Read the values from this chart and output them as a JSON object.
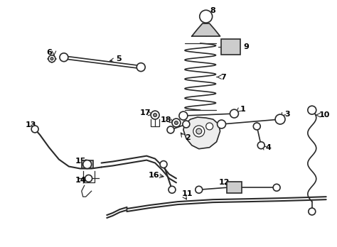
{
  "bg_color": "#ffffff",
  "line_color": "#2a2a2a",
  "label_color": "#000000",
  "figsize": [
    4.74,
    3.48
  ],
  "dpi": 100
}
